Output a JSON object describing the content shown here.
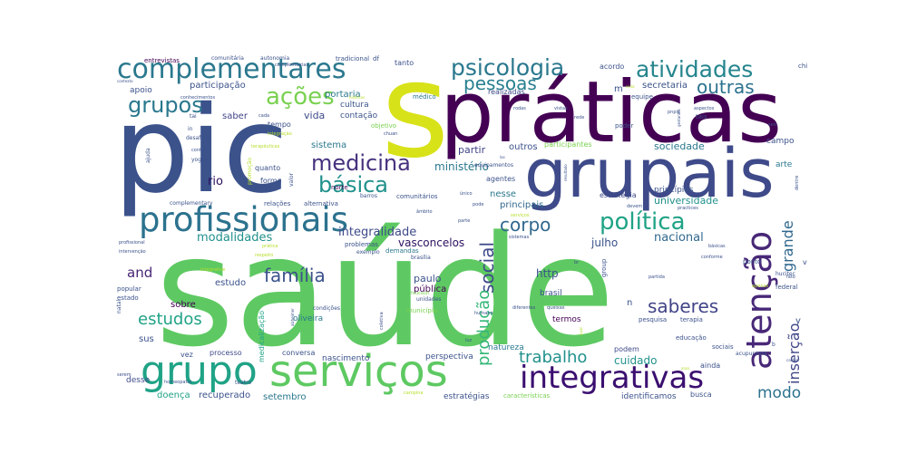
{
  "colors": {
    "dark_purple": "#440154",
    "deep_blue": "#3b528b",
    "teal": "#21918c",
    "green": "#5ec962",
    "yellow": "#fde725",
    "lime": "#b5de2b"
  },
  "words": {
    "saude": "saúde",
    "pic": "pic",
    "praticas": "práticas",
    "s": "s",
    "grupais": "grupais",
    "servicos": "serviços",
    "profissionais": "profissionais",
    "complementares": "complementares",
    "atencao": "atenção",
    "grupo": "grupo",
    "integrativas": "integrativas",
    "psicologia": "psicologia",
    "atividades": "atividades",
    "medicina": "medicina",
    "basica": "básica",
    "politica": "política",
    "acoes": "ações",
    "grupos": "grupos",
    "pessoas": "pessoas",
    "outras": "outras",
    "familia": "família",
    "saberes": "saberes",
    "trabalho": "trabalho",
    "estudos": "estudos",
    "corpo": "corpo",
    "social": "social",
    "producao": "produção",
    "modo": "modo",
    "insercao": "inserção",
    "grande": "grande",
    "integralidade": "integralidade",
    "modalidades": "modalidades",
    "ministerio": "ministério",
    "vasconcelos": "vasconcelos",
    "nacional": "nacional",
    "and": "and",
    "cuidado": "cuidado",
    "julho": "julho",
    "sociedade": "sociedade",
    "universidade": "universidade",
    "principios": "princípios",
    "participacao": "participação",
    "portaria": "portaria",
    "secretaria": "secretaria",
    "vida": "vida",
    "saber": "saber",
    "apoio": "apoio",
    "sistema": "sistema",
    "rio": "rio",
    "partir": "partir",
    "outros": "outros",
    "nesse": "nesse",
    "principais": "principais",
    "http": "http",
    "publica": "pública",
    "paulo": "paulo",
    "brasil": "brasil",
    "estudo": "estudo",
    "sobre": "sobre",
    "sus": "sus",
    "desse": "desse",
    "doenca": "doença",
    "recuperado": "recuperado",
    "setembro": "setembro",
    "estrategias": "estratégias",
    "identificamos": "identificamos",
    "podem": "podem",
    "ainda": "ainda",
    "busca": "busca",
    "natureza": "natureza",
    "perspectiva": "perspectiva",
    "nascimento": "nascimento",
    "conversa": "conversa",
    "processo": "processo",
    "vez": "vez",
    "termos": "termos",
    "oliveira": "oliveira",
    "tempo": "tempo",
    "cultura": "cultura",
    "contacao": "contação",
    "realizadas": "realizadas",
    "tanto": "tanto",
    "acordo": "acordo",
    "entrevistas": "entrevistas",
    "comunitaria": "comunitária",
    "autonomia": "autonomia",
    "complementar": "complementar",
    "tradicional": "tradicional",
    "df": "df",
    "chi": "chi",
    "medico": "médico",
    "equipe": "equipe",
    "m": "m",
    "campo": "campo",
    "arte": "arte",
    "estrategia": "estratégia",
    "agentes": "agentes",
    "comunitarios": "comunitários",
    "barros": "barros",
    "norte": "norte",
    "forma": "forma",
    "quanto": "quanto",
    "relacoes": "relações",
    "alternativa": "alternativa",
    "complementary": "complementary",
    "brasilia": "brasília",
    "exemplo": "exemplo",
    "problemas": "problemas",
    "demandas": "demandas",
    "unidades": "unidades",
    "municipio": "município",
    "condicoes": "condições",
    "popular": "popular",
    "estado": "estado",
    "medicalizacao": "medicalização",
    "group": "group",
    "ponto": "ponto",
    "federal": "federal",
    "educacao": "educação",
    "sociais": "sociais",
    "pesquisa": "pesquisa",
    "terapia": "terapia",
    "acupuntura": "acupuntura",
    "y": "y",
    "v": "v",
    "n": "n",
    "desafios": "desafios",
    "in": "in",
    "poder": "poder",
    "tais": "tais",
    "participantes": "participantes",
    "equipamentos": "equipamentos",
    "objetivo": "objetivo",
    "conhecimentos": "conhecimentos",
    "cada": "cada",
    "tai": "tai",
    "yoga": "yoga",
    "ajuda": "ajuda",
    "integracao": "integração",
    "terapeuticas": "terapêuticas",
    "promocao": "promoção",
    "conto": "conto",
    "valor": "valor",
    "profissional": "profissional",
    "intervencao": "intervenção",
    "pratica": "prática",
    "respeito": "respeito",
    "integrative": "integrative",
    "natal": "natal",
    "teatro": "teatro",
    "homeopatia": "homeopatia",
    "serem": "serem",
    "campina": "campina",
    "caracteristicas": "características",
    "luz": "luz",
    "humano": "humano",
    "diferentes": "diferentes",
    "queixas": "queixas",
    "coletiva": "coletiva",
    "foucault": "foucault",
    "ambito": "âmbito",
    "unico": "único",
    "pode": "pode",
    "parte": "parte",
    "servicos_small": "serviços",
    "sistemas": "sistemas",
    "devem": "devem",
    "practices": "practices",
    "basicas": "básicas",
    "conforme": "conforme",
    "hucitec": "hucitec",
    "partida": "partida",
    "apenas": "apenas",
    "fato": "fato",
    "dentre": "dentre",
    "seis": "seis",
    "rodas": "rodas",
    "vistas": "vistas",
    "rede": "rede",
    "contexto": "contexto",
    "resultado": "resultado",
    "aspectos": "aspectos",
    "pnpic": "pnpic",
    "gestantes": "gestantes",
    "chuan": "chuan",
    "las": "las",
    "historias": "histórias",
    "alzheimer": "alzheimer",
    "carater": "caráter",
    "b": "b",
    "anos": "anos",
    "vista": "vista",
    "br": "br",
    "qual": "qual"
  }
}
